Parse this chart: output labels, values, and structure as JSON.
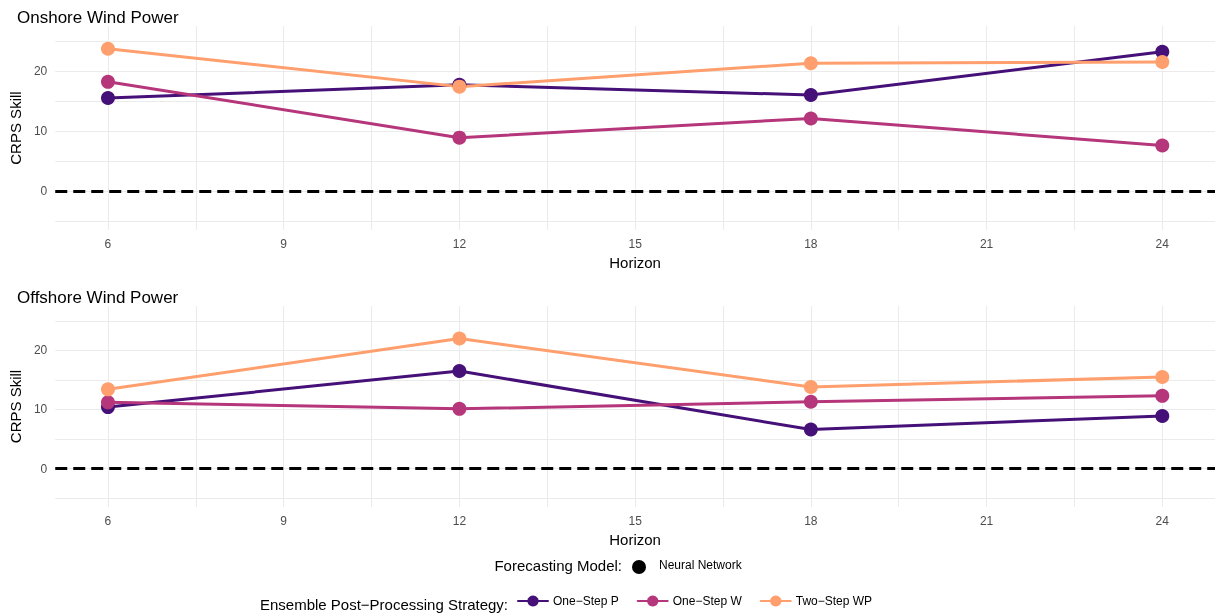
{
  "chart_data": [
    {
      "type": "line",
      "title": "Onshore Wind Power",
      "xlabel": "Horizon",
      "ylabel": "CRPS Skill",
      "x": [
        6,
        12,
        18,
        24
      ],
      "series": [
        {
          "color": "#451077",
          "values": [
            15.5,
            17.7,
            16.0,
            23.2
          ]
        },
        {
          "color": "#b5367a",
          "values": [
            18.2,
            8.9,
            12.1,
            7.6
          ]
        },
        {
          "color": "#fe9f6d",
          "values": [
            23.7,
            17.4,
            21.3,
            21.5
          ]
        }
      ],
      "xlim": [
        5.1,
        24.9
      ],
      "xticks": [
        6,
        {
          "value": 7.5,
          "label": null
        },
        9,
        {
          "value": 10.5,
          "label": null
        },
        12,
        {
          "value": 13.5,
          "label": null
        },
        15,
        {
          "value": 16.5,
          "label": null
        },
        18,
        {
          "value": 19.5,
          "label": null
        },
        21,
        {
          "value": 22.5,
          "label": null
        },
        24
      ],
      "ylim": [
        -6.5,
        27.5
      ],
      "yticks": [
        {
          "value": -5,
          "label": null
        },
        0,
        {
          "value": 5,
          "label": null
        },
        10,
        {
          "value": 15,
          "label": null
        },
        20,
        {
          "value": 25,
          "label": null
        }
      ],
      "ref_lines": [
        {
          "axis": "y",
          "value": 0,
          "color": "#000000",
          "line_style": "dashed"
        }
      ],
      "grid": true,
      "marker": "circle",
      "line_style": "solid",
      "legend": false
    },
    {
      "type": "line",
      "title": "Offshore Wind Power",
      "xlabel": "Horizon",
      "ylabel": "CRPS Skill",
      "x": [
        6,
        12,
        18,
        24
      ],
      "series": [
        {
          "name": "One−Step P",
          "color": "#451077",
          "values": [
            10.4,
            16.5,
            6.6,
            8.9
          ]
        },
        {
          "name": "One−Step W",
          "color": "#b5367a",
          "values": [
            11.2,
            10.1,
            11.3,
            12.3
          ]
        },
        {
          "name": "Two−Step WP",
          "color": "#fe9f6d",
          "values": [
            13.4,
            22.0,
            13.8,
            15.5
          ]
        }
      ],
      "xlim": [
        5.1,
        24.9
      ],
      "xticks": [
        6,
        {
          "value": 7.5,
          "label": null
        },
        9,
        {
          "value": 10.5,
          "label": null
        },
        12,
        {
          "value": 13.5,
          "label": null
        },
        15,
        {
          "value": 16.5,
          "label": null
        },
        18,
        {
          "value": 19.5,
          "label": null
        },
        21,
        {
          "value": 22.5,
          "label": null
        },
        24
      ],
      "ylim": [
        -6.5,
        27.5
      ],
      "yticks": [
        {
          "value": -5,
          "label": null
        },
        0,
        {
          "value": 5,
          "label": null
        },
        10,
        {
          "value": 15,
          "label": null
        },
        20,
        {
          "value": 25,
          "label": null
        }
      ],
      "ref_lines": [
        {
          "axis": "y",
          "value": 0,
          "color": "#000000",
          "line_style": "dashed"
        }
      ],
      "grid": true,
      "marker": "circle",
      "line_style": "solid",
      "legend": "bottom",
      "legend_title": "Ensemble Post−Processing Strategy:",
      "annotations": [
        "Forecasting Model:",
        "Neural Network"
      ]
    }
  ]
}
